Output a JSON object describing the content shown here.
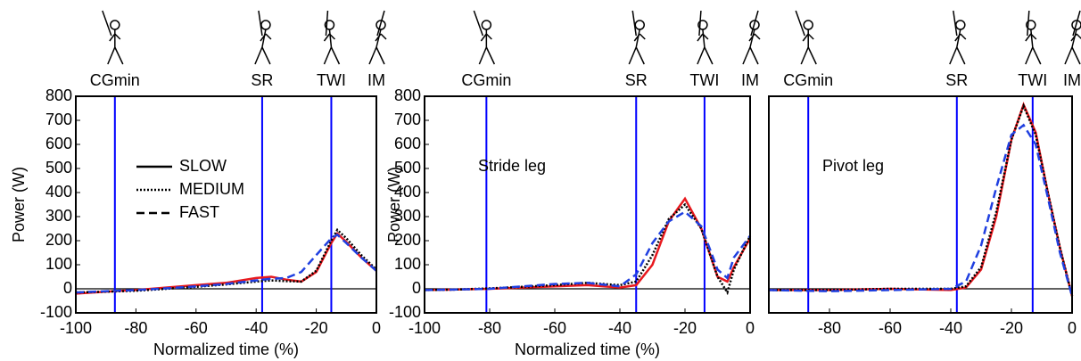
{
  "chart_data": [
    {
      "type": "line",
      "y_label": "Power (W)",
      "x_label": "Normalized time (%)",
      "x": [
        -100,
        -90,
        -80,
        -70,
        -60,
        -50,
        -40,
        -35,
        -30,
        -25,
        -20,
        -15,
        -13,
        -10,
        -5,
        0
      ],
      "series": [
        {
          "name": "SLOW",
          "color": "#e8191e",
          "style": "solid",
          "values": [
            -20,
            -12,
            -5,
            5,
            15,
            25,
            45,
            50,
            38,
            30,
            70,
            190,
            230,
            195,
            130,
            75
          ]
        },
        {
          "name": "MEDIUM",
          "color": "#000000",
          "style": "dotted",
          "values": [
            -15,
            -12,
            -8,
            0,
            8,
            18,
            30,
            35,
            32,
            30,
            75,
            200,
            245,
            210,
            140,
            80
          ]
        },
        {
          "name": "FAST",
          "color": "#1f3fe0",
          "style": "dashed",
          "values": [
            -15,
            -10,
            -5,
            2,
            10,
            20,
            35,
            42,
            45,
            70,
            140,
            210,
            225,
            190,
            130,
            75
          ]
        }
      ],
      "legend": true,
      "legend_line_color": "#000000",
      "events": [
        {
          "label": "CGmin",
          "x": -87
        },
        {
          "label": "SR",
          "x": -38
        },
        {
          "label": "TWI",
          "x": -15
        },
        {
          "label": "IM",
          "x": 0
        }
      ],
      "event_color": "#0000ff",
      "xlim": [
        -100,
        0
      ],
      "xticks": [
        -100,
        -80,
        -60,
        -40,
        -20,
        0
      ],
      "ylim": [
        -100,
        800
      ],
      "yticks": [
        -100,
        0,
        100,
        200,
        300,
        400,
        500,
        600,
        700,
        800
      ]
    },
    {
      "type": "line",
      "y_label": "Power (W)",
      "x_label": "Normalized time (%)",
      "annotation": "Stride leg",
      "x": [
        -100,
        -90,
        -80,
        -70,
        -60,
        -50,
        -40,
        -35,
        -30,
        -25,
        -20,
        -15,
        -10,
        -7,
        -5,
        0
      ],
      "series": [
        {
          "color": "#e8191e",
          "style": "solid",
          "values": [
            -5,
            -3,
            0,
            5,
            10,
            15,
            5,
            15,
            100,
            280,
            375,
            250,
            50,
            30,
            90,
            210
          ]
        },
        {
          "color": "#000000",
          "style": "dotted",
          "values": [
            -5,
            -3,
            2,
            8,
            15,
            25,
            15,
            30,
            140,
            290,
            350,
            250,
            50,
            -15,
            80,
            220
          ]
        },
        {
          "color": "#1f3fe0",
          "style": "dashed",
          "values": [
            -5,
            -3,
            0,
            10,
            20,
            25,
            10,
            60,
            190,
            280,
            320,
            260,
            80,
            45,
            130,
            220
          ]
        }
      ],
      "events": [
        {
          "label": "CGmin",
          "x": -81
        },
        {
          "label": "SR",
          "x": -35
        },
        {
          "label": "TWI",
          "x": -14
        },
        {
          "label": "IM",
          "x": 0
        }
      ],
      "event_color": "#0000ff",
      "xlim": [
        -100,
        0
      ],
      "xticks": [
        -100,
        -80,
        -60,
        -40,
        -20,
        0
      ],
      "ylim": [
        -100,
        800
      ],
      "yticks": [
        -100,
        0,
        100,
        200,
        300,
        400,
        500,
        600,
        700,
        800
      ]
    },
    {
      "type": "line",
      "annotation": "Pivot leg",
      "x": [
        -100,
        -80,
        -60,
        -40,
        -35,
        -30,
        -25,
        -20,
        -16,
        -12,
        -8,
        -4,
        0
      ],
      "series": [
        {
          "color": "#e8191e",
          "style": "solid",
          "values": [
            -5,
            -5,
            0,
            -5,
            5,
            80,
            300,
            620,
            765,
            650,
            400,
            170,
            -30
          ]
        },
        {
          "color": "#000000",
          "style": "dotted",
          "values": [
            -5,
            -5,
            0,
            0,
            10,
            90,
            320,
            620,
            760,
            640,
            400,
            170,
            -30
          ]
        },
        {
          "color": "#1f3fe0",
          "style": "dashed",
          "values": [
            -5,
            -10,
            -5,
            0,
            30,
            180,
            420,
            640,
            680,
            600,
            380,
            150,
            -30
          ]
        }
      ],
      "events": [
        {
          "label": "CGmin",
          "x": -87
        },
        {
          "label": "SR",
          "x": -38
        },
        {
          "label": "TWI",
          "x": -13
        },
        {
          "label": "IM",
          "x": 0
        }
      ],
      "event_color": "#0000ff",
      "xlim": [
        -100,
        0
      ],
      "xticks": [
        -80,
        -60,
        -40,
        -20,
        0
      ],
      "ylim": [
        -100,
        800
      ]
    }
  ]
}
